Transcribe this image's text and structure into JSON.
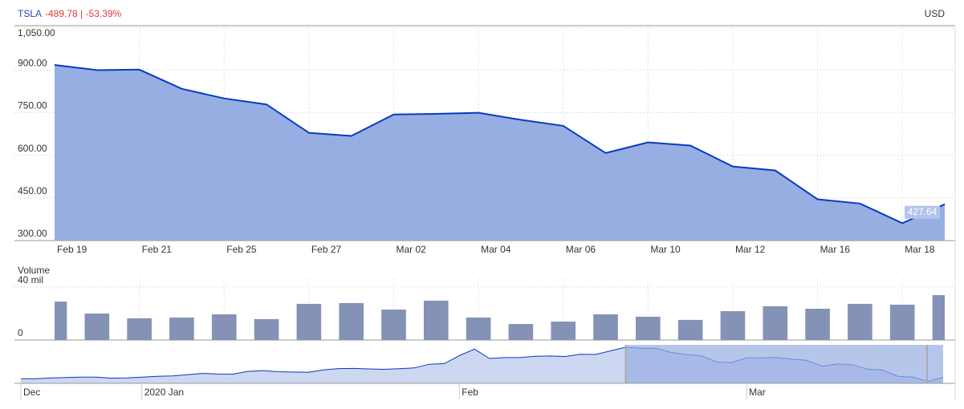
{
  "chart_data": [
    {
      "type": "area",
      "title": "TSLA",
      "subtitle": "-489.78 | -53.39%",
      "unit": "USD",
      "categories": [
        "Feb 19",
        null,
        "Feb 21",
        null,
        "Feb 25",
        null,
        "Feb 27",
        null,
        "Mar 02",
        null,
        "Mar 04",
        null,
        "Mar 06",
        null,
        "Mar 10",
        null,
        "Mar 12",
        null,
        "Mar 16",
        null,
        "Mar 18",
        null
      ],
      "values": [
        917.42,
        899.41,
        901,
        833.79,
        799.91,
        778.8,
        679,
        667.99,
        743.62,
        745.51,
        749.5,
        724.54,
        703.48,
        608,
        645.33,
        634.23,
        560.55,
        546.62,
        445.07,
        430.2,
        361.22,
        427.64
      ],
      "color": "#0a3bbf",
      "fill": "#97aee2",
      "ylim": [
        300,
        1050
      ],
      "yticks": [
        {
          "value": 300,
          "label": "300.00"
        },
        {
          "value": 450,
          "label": "450.00"
        },
        {
          "value": 600,
          "label": "600.00"
        },
        {
          "value": 750,
          "label": "750.00"
        },
        {
          "value": 900,
          "label": "900.00"
        },
        {
          "value": 1050,
          "label": "1,050.00"
        }
      ],
      "grid": true
    },
    {
      "type": "bar",
      "title": "Volume",
      "values": [
        29,
        20,
        16.4,
        17,
        19.4,
        15.8,
        27.3,
        27.9,
        23,
        29.7,
        17,
        12.1,
        13.9,
        19.4,
        17.6,
        15.2,
        21.8,
        25.5,
        23.6,
        27.3,
        26.7,
        33.9
      ],
      "color": "#8492b6",
      "ylim": [
        0,
        46
      ],
      "yticks": [
        0,
        {
          "value": 40,
          "label": "40 mil"
        }
      ],
      "grid": true
    },
    {
      "type": "area",
      "categories": [
        "Dec",
        null,
        null,
        null,
        null,
        null,
        null,
        null,
        "2020 Jan",
        null,
        null,
        null,
        null,
        null,
        null,
        null,
        null,
        null,
        null,
        null,
        null,
        null,
        null,
        null,
        null,
        null,
        null,
        null,
        null,
        "Feb",
        null,
        null,
        null,
        null,
        null,
        null,
        null,
        null,
        null,
        null,
        null,
        null,
        null,
        null,
        null,
        null,
        null,
        null,
        "Mar",
        null,
        null,
        null,
        null,
        null,
        null,
        null,
        null,
        null,
        null,
        null,
        null,
        null
      ],
      "values": [
        404.04,
        405.59,
        419.22,
        425.25,
        430.94,
        430.38,
        414.7,
        418.33,
        430.26,
        443.01,
        451.54,
        469.06,
        492.14,
        481.34,
        478.15,
        524.86,
        537.92,
        518.5,
        513.49,
        510.5,
        547.2,
        569.56,
        572.2,
        564.82,
        558.02,
        566.9,
        580.99,
        640.81,
        650.57,
        780,
        887.06,
        734.7,
        748.96,
        748.07,
        771.28,
        774.38,
        767.29,
        804,
        800.03,
        858.4,
        917.42,
        899.41,
        901,
        833.79,
        799.91,
        778.8,
        679,
        667.99,
        743.62,
        745.51,
        749.5,
        724.54,
        703.48,
        608,
        645.33,
        634.23,
        560.55,
        546.62,
        445.07,
        430.2,
        361.22,
        427.64
      ],
      "color": "#0a3bbf",
      "fill": "#cdd7f1",
      "ylim": [
        330,
        930
      ]
    }
  ]
}
